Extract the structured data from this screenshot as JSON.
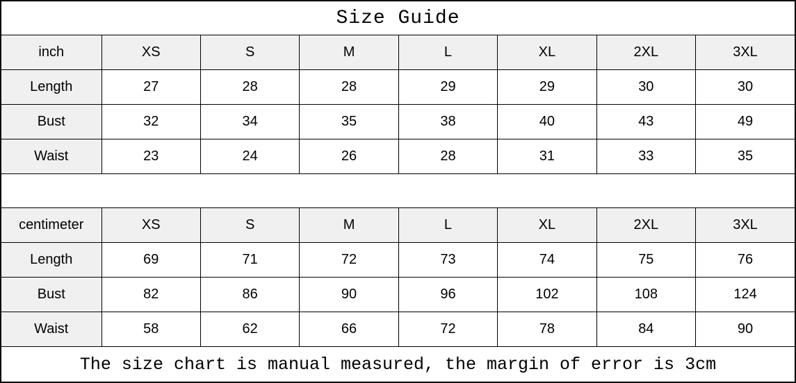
{
  "title": "Size Guide",
  "footer_note": "The size chart is manual measured, the margin of error is 3cm",
  "colors": {
    "header_bg": "#f0f0f0",
    "border": "#000000",
    "text": "#000000",
    "background": "#ffffff"
  },
  "chart_data": [
    {
      "type": "table",
      "title": "Size Guide (inch)",
      "unit_label": "inch",
      "columns": [
        "XS",
        "S",
        "M",
        "L",
        "XL",
        "2XL",
        "3XL"
      ],
      "rows": [
        {
          "label": "Length",
          "values": [
            "27",
            "28",
            "28",
            "29",
            "29",
            "30",
            "30"
          ]
        },
        {
          "label": "Bust",
          "values": [
            "32",
            "34",
            "35",
            "38",
            "40",
            "43",
            "49"
          ]
        },
        {
          "label": "Waist",
          "values": [
            "23",
            "24",
            "26",
            "28",
            "31",
            "33",
            "35"
          ]
        }
      ]
    },
    {
      "type": "table",
      "title": "Size Guide (centimeter)",
      "unit_label": "centimeter",
      "columns": [
        "XS",
        "S",
        "M",
        "L",
        "XL",
        "2XL",
        "3XL"
      ],
      "rows": [
        {
          "label": "Length",
          "values": [
            "69",
            "71",
            "72",
            "73",
            "74",
            "75",
            "76"
          ]
        },
        {
          "label": "Bust",
          "values": [
            "82",
            "86",
            "90",
            "96",
            "102",
            "108",
            "124"
          ]
        },
        {
          "label": "Waist",
          "values": [
            "58",
            "62",
            "66",
            "72",
            "78",
            "84",
            "90"
          ]
        }
      ]
    }
  ]
}
